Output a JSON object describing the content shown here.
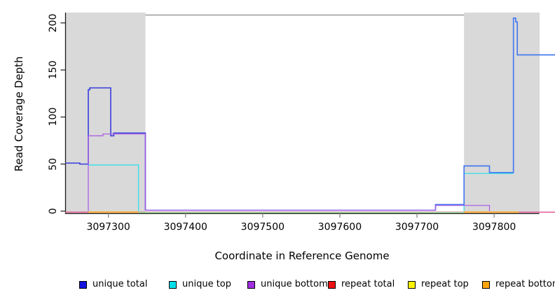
{
  "chart_data": {
    "type": "line",
    "title": "",
    "xlabel": "Coordinate in Reference Genome",
    "ylabel": "Read Coverage Depth",
    "xlim": [
      3097244,
      3097858
    ],
    "ylim": [
      0,
      208
    ],
    "x_ticks": [
      3097300,
      3097400,
      3097500,
      3097600,
      3097700,
      3097800
    ],
    "x_tick_labels": [
      "3097300",
      "3097400",
      "3097500",
      "3097600",
      "3097700",
      "3097800"
    ],
    "y_ticks": [
      0,
      50,
      100,
      150,
      200
    ],
    "y_tick_labels": [
      "0",
      "50",
      "100",
      "150",
      "200"
    ],
    "grid": false,
    "legend_position": "bottom",
    "highlight_regions": [
      {
        "name": "left-gray-band",
        "x0": 3097244,
        "x1": 3097348,
        "color": "#d9d9d9"
      },
      {
        "name": "right-gray-band",
        "x0": 3097761,
        "x1": 3097859,
        "color": "#d9d9d9"
      }
    ],
    "series": [
      {
        "name": "repeat total",
        "color": "#e0568c",
        "width": 1.4,
        "dy": 1.5,
        "segments": [
          [
            [
              3097244,
              0
            ],
            [
              3097879,
              0
            ]
          ]
        ]
      },
      {
        "name": "repeat top",
        "color": "#ffe800",
        "width": 1.4,
        "dy": 1.5,
        "segments": [
          [
            [
              3097274,
              0
            ],
            [
              3097339,
              0
            ]
          ],
          [
            [
              3097761,
              0
            ],
            [
              3097832,
              0
            ]
          ]
        ]
      },
      {
        "name": "repeat bottom",
        "color": "#ff9d1e",
        "width": 1.6,
        "dy": 1.5,
        "segments": [
          [
            [
              3097274,
              0
            ],
            [
              3097339,
              0
            ]
          ],
          [
            [
              3097761,
              0
            ],
            [
              3097832,
              0
            ]
          ]
        ]
      },
      {
        "name": "unique top+bottom zero overlap",
        "color": "#8fd992",
        "width": 1.4,
        "dy": 2,
        "segments": [
          [
            [
              3097339,
              0
            ],
            [
              3097761,
              0
            ]
          ]
        ]
      },
      {
        "name": "unique top",
        "color": "#40dfe8",
        "width": 1.4,
        "dy": 0,
        "segments": [
          [
            [
              3097274,
              49
            ],
            [
              3097339,
              49
            ],
            [
              3097339,
              0
            ]
          ],
          [
            [
              3097761,
              0
            ],
            [
              3097761,
              40
            ],
            [
              3097825,
              40
            ]
          ]
        ]
      },
      {
        "name": "unique total",
        "color": "#4145dc",
        "width": 1.7,
        "dy": 0,
        "colors": [
          "#4145dc",
          "#4679f0"
        ],
        "segments": [
          [
            [
              3097244,
              51
            ],
            [
              3097263,
              51
            ],
            [
              3097263,
              50
            ],
            [
              3097274,
              50
            ],
            [
              3097274,
              129
            ],
            [
              3097276,
              129
            ],
            [
              3097276,
              131
            ],
            [
              3097303,
              131
            ],
            [
              3097303,
              80
            ],
            [
              3097307,
              80
            ],
            [
              3097307,
              83
            ],
            [
              3097348,
              83
            ],
            [
              3097348,
              1
            ]
          ],
          [
            [
              3097348,
              1
            ],
            [
              3097724,
              1
            ],
            [
              3097724,
              7
            ],
            [
              3097761,
              7
            ],
            [
              3097761,
              48
            ],
            [
              3097794,
              48
            ],
            [
              3097794,
              41
            ],
            [
              3097825,
              41
            ],
            [
              3097825,
              205
            ],
            [
              3097828,
              205
            ],
            [
              3097828,
              201
            ],
            [
              3097830,
              201
            ],
            [
              3097830,
              166
            ],
            [
              3097879,
              166
            ]
          ]
        ]
      },
      {
        "name": "unique bottom",
        "color": "#ab5fe6",
        "width": 1.3,
        "dy": 0,
        "segments": [
          [
            [
              3097274,
              0
            ],
            [
              3097274,
              80
            ],
            [
              3097293,
              80
            ],
            [
              3097293,
              82
            ],
            [
              3097348,
              82
            ],
            [
              3097348,
              1
            ],
            [
              3097724,
              1
            ],
            [
              3097724,
              6
            ],
            [
              3097794,
              6
            ],
            [
              3097794,
              0
            ]
          ]
        ]
      }
    ],
    "legend": [
      {
        "label": "unique total",
        "color": "#1414e0"
      },
      {
        "label": "unique top",
        "color": "#00e0ea"
      },
      {
        "label": "unique bottom",
        "color": "#a02fe0"
      },
      {
        "label": "repeat total",
        "color": "#ee1111"
      },
      {
        "label": "repeat top",
        "color": "#fff200"
      },
      {
        "label": "repeat bottom",
        "color": "#ffa510"
      }
    ],
    "axis_colors": {
      "axis_line": "#1a1a1a",
      "x_tick": "#8c8c8c",
      "box_top": "#8a8a8a"
    }
  }
}
